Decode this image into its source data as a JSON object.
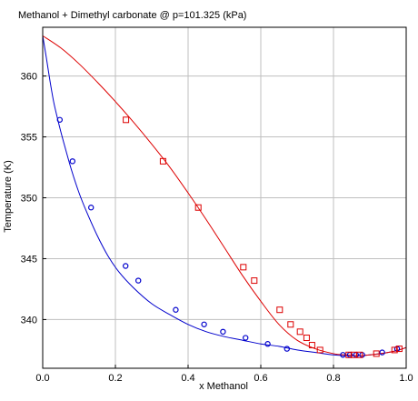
{
  "chart_data": {
    "type": "scatter",
    "title": "Methanol + Dimethyl carbonate @ p=101.325 (kPa)",
    "xlabel": "x Methanol",
    "ylabel": "Temperature (K)",
    "xlim": [
      0.0,
      1.0
    ],
    "ylim": [
      336.0,
      364.0
    ],
    "x_ticks": [
      0.0,
      0.2,
      0.4,
      0.6,
      0.8,
      1.0
    ],
    "x_tick_labels": [
      "0.0",
      "0.2",
      "0.4",
      "0.6",
      "0.8",
      "1.0"
    ],
    "y_ticks": [
      340,
      345,
      350,
      355,
      360
    ],
    "y_tick_labels": [
      "340",
      "345",
      "350",
      "355",
      "360"
    ],
    "grid": true,
    "colors": {
      "liquid": "#0000cc",
      "vapor": "#dd0000",
      "grid": "#bfbfbf",
      "axis": "#000000"
    },
    "series": [
      {
        "role": "liquid_curve",
        "kind": "line",
        "x": [
          0.0,
          0.01,
          0.02,
          0.03,
          0.04,
          0.05,
          0.06,
          0.08,
          0.1,
          0.12,
          0.15,
          0.18,
          0.21,
          0.25,
          0.3,
          0.35,
          0.4,
          0.45,
          0.5,
          0.55,
          0.6,
          0.65,
          0.7,
          0.75,
          0.8,
          0.83,
          0.86,
          0.88,
          0.9,
          0.93,
          0.96,
          0.98,
          1.0
        ],
        "y": [
          363.3,
          361.5,
          359.6,
          357.9,
          356.6,
          355.4,
          354.3,
          352.2,
          350.4,
          348.9,
          346.9,
          345.2,
          343.9,
          342.6,
          341.3,
          340.4,
          339.6,
          339.0,
          338.6,
          338.3,
          338.0,
          337.8,
          337.5,
          337.3,
          337.1,
          337.05,
          337.03,
          337.05,
          337.1,
          337.2,
          337.35,
          337.5,
          337.7
        ]
      },
      {
        "role": "vapor_curve",
        "kind": "line",
        "x": [
          0.0,
          0.05,
          0.1,
          0.15,
          0.2,
          0.25,
          0.3,
          0.35,
          0.4,
          0.45,
          0.5,
          0.55,
          0.6,
          0.65,
          0.7,
          0.75,
          0.8,
          0.83,
          0.86,
          0.88,
          0.9,
          0.93,
          0.96,
          0.98,
          1.0
        ],
        "y": [
          363.3,
          362.3,
          361.0,
          359.5,
          357.9,
          356.2,
          354.4,
          352.5,
          350.4,
          348.2,
          345.9,
          343.6,
          341.5,
          339.6,
          338.3,
          337.6,
          337.2,
          337.1,
          337.05,
          337.05,
          337.1,
          337.2,
          337.35,
          337.5,
          337.7
        ]
      },
      {
        "role": "liquid_points",
        "kind": "marker-circle",
        "x": [
          0.047,
          0.082,
          0.133,
          0.228,
          0.263,
          0.366,
          0.444,
          0.496,
          0.558,
          0.619,
          0.672,
          0.826,
          0.845,
          0.862,
          0.879,
          0.934,
          0.975
        ],
        "y": [
          356.4,
          353.0,
          349.2,
          344.4,
          343.2,
          340.8,
          339.6,
          339.0,
          338.5,
          338.0,
          337.6,
          337.1,
          337.1,
          337.1,
          337.1,
          337.3,
          337.6
        ]
      },
      {
        "role": "vapor_points",
        "kind": "marker-square",
        "x": [
          0.229,
          0.331,
          0.428,
          0.552,
          0.582,
          0.652,
          0.682,
          0.708,
          0.726,
          0.741,
          0.763,
          0.842,
          0.856,
          0.872,
          0.918,
          0.968,
          0.981
        ],
        "y": [
          356.4,
          353.0,
          349.2,
          344.3,
          343.2,
          340.8,
          339.6,
          339.0,
          338.5,
          337.9,
          337.5,
          337.1,
          337.1,
          337.1,
          337.2,
          337.5,
          337.6
        ]
      }
    ]
  }
}
